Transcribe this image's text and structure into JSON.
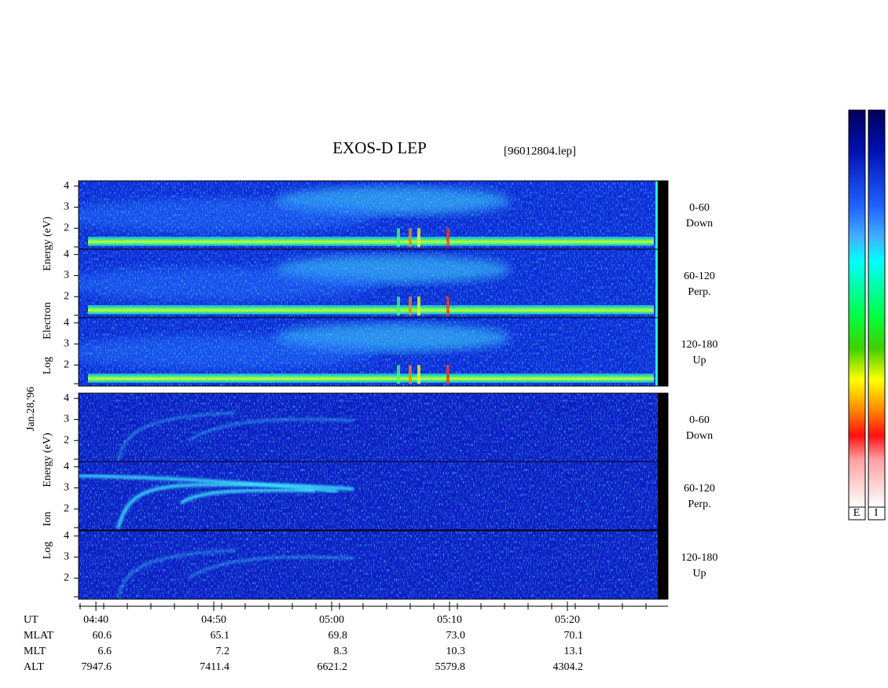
{
  "title": "EXOS-D LEP",
  "file": "[96012804.lep]",
  "date": "Jan.28,'96",
  "electron": {
    "axis_label": [
      "Log",
      "Electron",
      "Energy (eV)"
    ],
    "panels": [
      {
        "angle": "0-60",
        "direction": "Down"
      },
      {
        "angle": "60-120",
        "direction": "Perp."
      },
      {
        "angle": "120-180",
        "direction": "Up"
      }
    ]
  },
  "ion": {
    "axis_label": [
      "Log",
      "Ion",
      "Energy (eV)"
    ],
    "panels": [
      {
        "angle": "0-60",
        "direction": "Down"
      },
      {
        "angle": "60-120",
        "direction": "Perp."
      },
      {
        "angle": "120-180",
        "direction": "Up"
      }
    ]
  },
  "yaxis": {
    "ylim": [
      1,
      4.25
    ],
    "yticks": [
      2,
      3,
      4
    ]
  },
  "xaxis": {
    "xlim": [
      278.53,
      328.53
    ],
    "xticks": [
      {
        "value": 280,
        "label": "04:40"
      },
      {
        "value": 290,
        "label": "04:50"
      },
      {
        "value": 300,
        "label": "05:00"
      },
      {
        "value": 310,
        "label": "05:10"
      },
      {
        "value": 320,
        "label": "05:20"
      }
    ]
  },
  "orbit": {
    "rows": [
      {
        "label": "UT"
      },
      {
        "label": "MLAT",
        "values": [
          "60.6",
          "65.1",
          "69.8",
          "73.0",
          "70.1"
        ]
      },
      {
        "label": "MLT",
        "values": [
          "6.6",
          "7.2",
          "8.3",
          "10.3",
          "13.1"
        ]
      },
      {
        "label": "ALT",
        "values": [
          "7947.6",
          "7411.4",
          "6621.2",
          "5579.8",
          "4304.2"
        ]
      }
    ]
  },
  "colorbar": {
    "labels": [
      "E",
      "I"
    ]
  }
}
